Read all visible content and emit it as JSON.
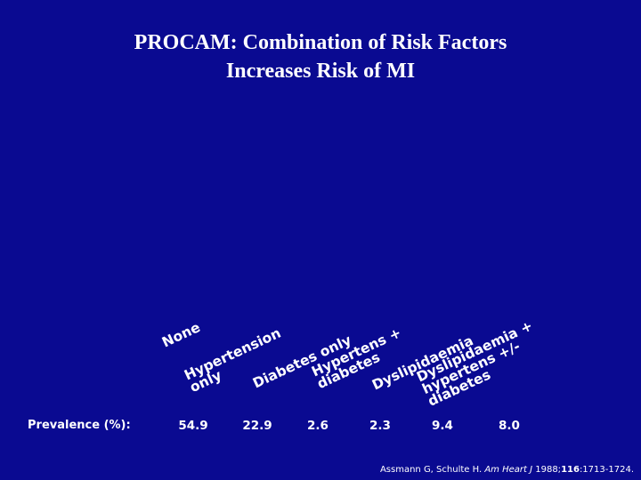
{
  "title": {
    "line1": "PROCAM: Combination of Risk Factors",
    "line2": "Increases Risk of MI"
  },
  "chart_data": {
    "type": "bar",
    "title": "PROCAM: Combination of Risk Factors Increases Risk of MI",
    "categories": [
      [
        "None"
      ],
      [
        "Hypertension",
        "only"
      ],
      [
        "Diabetes only"
      ],
      [
        "Hypertens +",
        "diabetes"
      ],
      [
        "Dyslipidaemia"
      ],
      [
        "Dyslipidaemia +",
        "hypertens +/-",
        "diabetes"
      ]
    ],
    "prevalence_label": "Prevalence (%):",
    "prevalence": [
      "54.9",
      "22.9",
      "2.6",
      "2.3",
      "9.4",
      "8.0"
    ]
  },
  "citation": {
    "authors": "Assmann G, Schulte H.",
    "journal": "Am Heart J",
    "year": "1988;",
    "volume": "116",
    "pages": ":1713-1724."
  },
  "colors": {
    "background": "#0a0a91",
    "text": "#ffffff"
  }
}
